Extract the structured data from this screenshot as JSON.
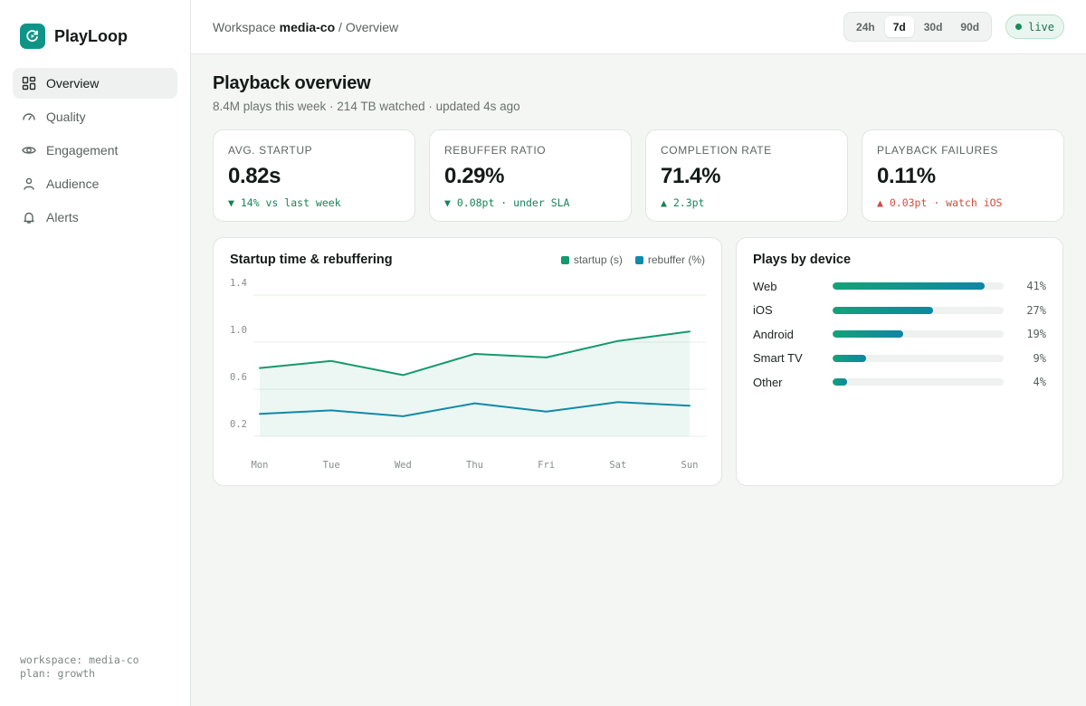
{
  "brand": {
    "name": "PlayLoop"
  },
  "sidebar": {
    "items": [
      {
        "label": "Overview",
        "icon": "grid-icon",
        "active": true
      },
      {
        "label": "Quality",
        "icon": "gauge-icon"
      },
      {
        "label": "Engagement",
        "icon": "eye-icon"
      },
      {
        "label": "Audience",
        "icon": "user-icon"
      },
      {
        "label": "Alerts",
        "icon": "bell-icon"
      }
    ],
    "footer": {
      "workspace": "workspace: media-co",
      "plan": "plan: growth"
    }
  },
  "topbar": {
    "breadcrumb": {
      "prefix": "Workspace",
      "workspace": "media-co",
      "separator": "/",
      "page": "Overview"
    },
    "ranges": [
      "24h",
      "7d",
      "30d",
      "90d"
    ],
    "active_range": "7d",
    "live_label": "live"
  },
  "page": {
    "title": "Playback overview",
    "subtitle": "8.4M plays this week · 214 TB watched · updated 4s ago"
  },
  "kpis": [
    {
      "label": "AVG. STARTUP",
      "value": "0.82s",
      "delta": "▼ 14% vs last week",
      "tone": "good"
    },
    {
      "label": "REBUFFER RATIO",
      "value": "0.29%",
      "delta": "▼ 0.08pt · under SLA",
      "tone": "good"
    },
    {
      "label": "COMPLETION RATE",
      "value": "71.4%",
      "delta": "▲ 2.3pt",
      "tone": "good"
    },
    {
      "label": "PLAYBACK FAILURES",
      "value": "0.11%",
      "delta": "▲ 0.03pt · watch iOS",
      "tone": "bad"
    }
  ],
  "colors": {
    "startup": "#139a6e",
    "rebuffer": "#118aa8",
    "accent": "#0f9488"
  },
  "chart_data": {
    "type": "line",
    "title": "Startup time & rebuffering",
    "categories": [
      "Mon",
      "Tue",
      "Wed",
      "Thu",
      "Fri",
      "Sat",
      "Sun"
    ],
    "yticks": [
      "1.4",
      "1.0",
      "0.6",
      "0.2"
    ],
    "ylim": [
      0.2,
      1.4
    ],
    "series": [
      {
        "name": "startup (s)",
        "values": [
          0.78,
          0.84,
          0.72,
          0.9,
          0.87,
          1.01,
          1.09
        ],
        "area": true
      },
      {
        "name": "rebuffer (%)",
        "values": [
          0.39,
          0.42,
          0.37,
          0.48,
          0.41,
          0.49,
          0.46
        ]
      }
    ],
    "legend": "top-right",
    "grid": true
  },
  "devices": {
    "title": "Plays by device",
    "items": [
      {
        "name": "Web",
        "share": 41,
        "label": "41%"
      },
      {
        "name": "iOS",
        "share": 27,
        "label": "27%"
      },
      {
        "name": "Android",
        "share": 19,
        "label": "19%"
      },
      {
        "name": "Smart TV",
        "share": 9,
        "label": "9%"
      },
      {
        "name": "Other",
        "share": 4,
        "label": "4%"
      }
    ]
  }
}
